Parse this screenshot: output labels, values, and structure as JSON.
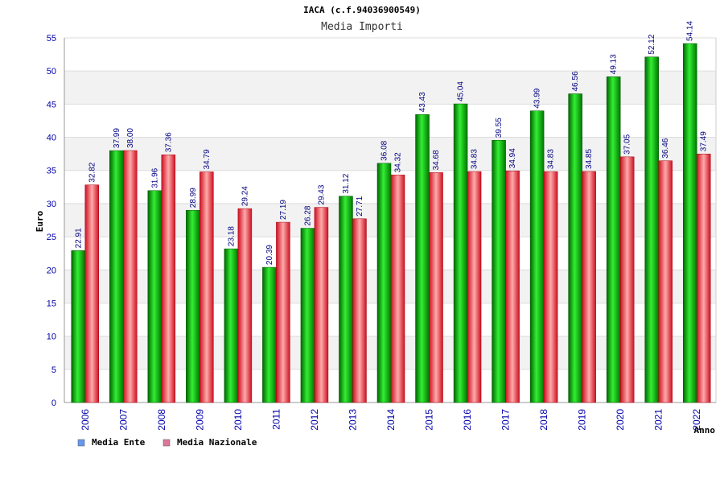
{
  "chart_data": {
    "type": "bar",
    "title": "IACA (c.f.94036900549)",
    "subtitle": "Media Importi",
    "xlabel": "Anno",
    "ylabel": "Euro",
    "ylim": [
      0,
      55
    ],
    "yticks": [
      0,
      5,
      10,
      15,
      20,
      25,
      30,
      35,
      40,
      45,
      50,
      55
    ],
    "grid": true,
    "legend_position": "bottom-left",
    "categories": [
      "2006",
      "2007",
      "2008",
      "2009",
      "2010",
      "2011",
      "2012",
      "2013",
      "2014",
      "2015",
      "2016",
      "2017",
      "2018",
      "2019",
      "2020",
      "2021",
      "2022"
    ],
    "series": [
      {
        "name": "Media Ente",
        "color": "#00aa00",
        "legend_color": "#6699ee",
        "values": [
          22.91,
          37.99,
          31.96,
          28.99,
          23.18,
          20.39,
          26.28,
          31.12,
          36.08,
          43.43,
          45.04,
          39.55,
          43.99,
          46.56,
          49.13,
          52.12,
          54.14
        ],
        "labels": [
          "22.91",
          "37.99",
          "31.96",
          "28.99",
          "23.18",
          "20.39",
          "26.28",
          "31.12",
          "36.08",
          "43.43",
          "45.04",
          "39.55",
          "43.99",
          "46.56",
          "49.13",
          "52.12",
          "54.14"
        ]
      },
      {
        "name": "Media Nazionale",
        "color": "#dd2233",
        "legend_color": "#dd7799",
        "values": [
          32.82,
          38.0,
          37.36,
          34.79,
          29.24,
          27.19,
          29.43,
          27.71,
          34.32,
          34.68,
          34.83,
          34.94,
          34.83,
          34.85,
          37.05,
          36.46,
          37.49
        ],
        "labels": [
          "32.82",
          "38.00",
          "37.36",
          "34.79",
          "29.24",
          "27.19",
          "29.43",
          "27.71",
          "34.32",
          "34.68",
          "34.83",
          "34.94",
          "34.83",
          "34.85",
          "37.05",
          "36.46",
          "37.49"
        ]
      }
    ]
  }
}
